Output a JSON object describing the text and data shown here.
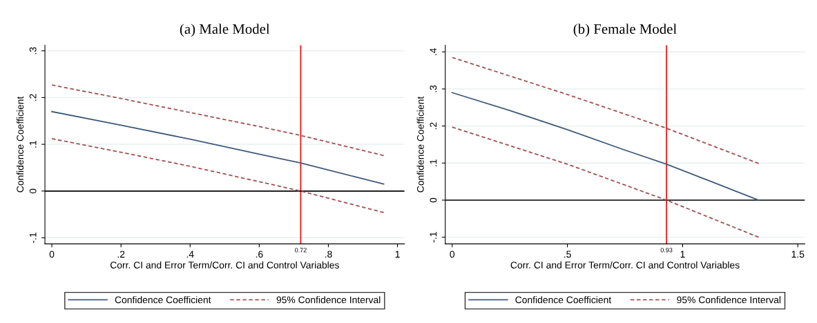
{
  "chart_data": [
    {
      "type": "line",
      "title": "(a) Male Model",
      "xlabel": "Corr. CI and Error Term/Corr. CI and Control Variables",
      "ylabel": "Confidence Coefficient",
      "xlim": [
        -0.02,
        1.02
      ],
      "xticks": [
        0,
        {
          "value": 0.2,
          "label": ".2"
        },
        {
          "value": 0.4,
          "label": ".4"
        },
        {
          "value": 0.6,
          "label": ".6"
        },
        {
          "value": 0.8,
          "label": ".8"
        },
        1
      ],
      "ylim": [
        -0.113,
        0.312
      ],
      "yticks": [
        {
          "value": -0.1,
          "label": "-.1"
        },
        0,
        {
          "value": 0.1,
          "label": ".1"
        },
        {
          "value": 0.2,
          "label": ".2"
        },
        {
          "value": 0.3,
          "label": ".3"
        }
      ],
      "grid": "y",
      "legend": "bottom",
      "series": [
        {
          "name": "Confidence Coefficient",
          "color": "#3e5a78",
          "line_style": "solid",
          "x": [
            0,
            0.2,
            0.4,
            0.6,
            0.72,
            0.96
          ],
          "values": [
            0.17,
            0.141,
            0.111,
            0.079,
            0.06,
            0.015
          ]
        },
        {
          "name": "95% Confidence Interval",
          "color": "#a05050",
          "line_style": "dashed",
          "x": [
            0,
            0.2,
            0.4,
            0.6,
            0.72,
            0.96
          ],
          "values": [
            0.227,
            0.198,
            0.168,
            0.138,
            0.119,
            0.076
          ]
        },
        {
          "color": "#a05050",
          "line_style": "dashed",
          "x": [
            0,
            0.2,
            0.4,
            0.6,
            0.72,
            0.96
          ],
          "values": [
            0.112,
            0.083,
            0.053,
            0.02,
            0,
            -0.046
          ]
        }
      ],
      "ref_lines": [
        {
          "axis": "x",
          "value": 0.72,
          "label": "0.72",
          "color": "#ff0000"
        },
        {
          "axis": "y",
          "value": 0,
          "color": "#000000"
        }
      ]
    },
    {
      "type": "line",
      "title": "(b) Female Model",
      "xlabel": "Corr. CI and Error Term/Corr. CI and Control Variables",
      "ylabel": "Confidence Coefficient",
      "xlim": [
        -0.03,
        1.53
      ],
      "xticks": [
        0,
        {
          "value": 0.5,
          "label": ".5"
        },
        1,
        1.5
      ],
      "ylim": [
        -0.118,
        0.418
      ],
      "yticks": [
        {
          "value": -0.1,
          "label": "-.1"
        },
        0,
        {
          "value": 0.1,
          "label": ".1"
        },
        {
          "value": 0.2,
          "label": ".2"
        },
        {
          "value": 0.3,
          "label": ".3"
        },
        {
          "value": 0.4,
          "label": ".4"
        }
      ],
      "grid": "y",
      "legend": "bottom",
      "series": [
        {
          "name": "Confidence Coefficient",
          "color": "#3e5a78",
          "line_style": "solid",
          "x": [
            0,
            0.25,
            0.5,
            0.75,
            0.93,
            1.1,
            1.33
          ],
          "values": [
            0.29,
            0.242,
            0.19,
            0.135,
            0.097,
            0.056,
            0
          ]
        },
        {
          "name": "95% Confidence Interval",
          "color": "#a05050",
          "line_style": "dashed",
          "x": [
            0,
            0.5,
            0.93,
            1.33
          ],
          "values": [
            0.385,
            0.285,
            0.194,
            0.099
          ]
        },
        {
          "color": "#a05050",
          "line_style": "dashed",
          "x": [
            0,
            0.5,
            0.93,
            1.33
          ],
          "values": [
            0.197,
            0.097,
            0,
            -0.1
          ]
        }
      ],
      "ref_lines": [
        {
          "axis": "x",
          "value": 0.93,
          "label": "0.93",
          "color": "#ff0000"
        },
        {
          "axis": "y",
          "value": 0,
          "color": "#000000"
        }
      ]
    }
  ]
}
